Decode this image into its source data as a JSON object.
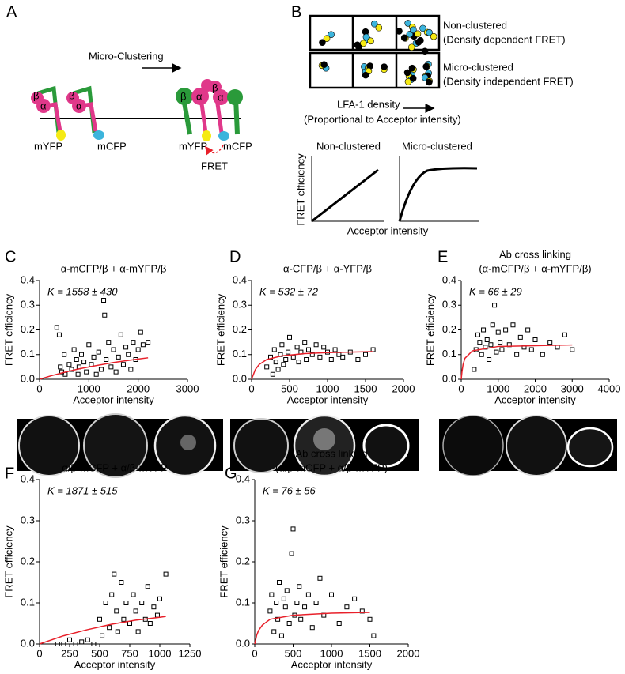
{
  "panels": [
    "A",
    "B",
    "C",
    "D",
    "E",
    "F",
    "G"
  ],
  "diagram_a": {
    "arrow_label": "Micro-Clustering",
    "alpha": "α",
    "beta": "β",
    "yfp": "mYFP",
    "cfp": "mCFP",
    "fret": "FRET"
  },
  "diagram_b": {
    "row1_title": "Non-clustered",
    "row1_note": "(Density dependent FRET)",
    "row2_title": "Micro-clustered",
    "row2_note": "(Density independent FRET)",
    "density_label": "LFA-1 density",
    "density_note": "(Proportional to Acceptor intensity)",
    "plot1_title": "Non-clustered",
    "plot2_title": "Micro-clustered",
    "ylabel": "FRET efficiency",
    "xlabel": "Acceptor intensity"
  },
  "chart_data": [
    {
      "type": "scatter",
      "title": "α-mCFP/β + α-mYFP/β",
      "annotation": "K = 1558 ± 430",
      "xlabel": "Acceptor intensity",
      "ylabel": "FRET efficiency",
      "xlim": [
        0,
        3000
      ],
      "ylim": [
        0,
        0.4
      ],
      "xticks": [
        0,
        1000,
        2000,
        3000
      ],
      "yticks": [
        {
          "value": 0,
          "label": "0.0"
        },
        0.1,
        0.2,
        0.3,
        0.4
      ],
      "series": [
        {
          "color": "#000000",
          "x": [
            350,
            400,
            420,
            450,
            500,
            520,
            600,
            650,
            700,
            750,
            780,
            800,
            850,
            900,
            950,
            1000,
            1050,
            1100,
            1150,
            1200,
            1250,
            1300,
            1320,
            1350,
            1400,
            1450,
            1500,
            1550,
            1600,
            1650,
            1700,
            1750,
            1800,
            1850,
            1900,
            1950,
            2000,
            2050,
            2100,
            2200
          ],
          "values": [
            0.21,
            0.18,
            0.05,
            0.03,
            0.1,
            0.02,
            0.06,
            0.04,
            0.12,
            0.08,
            0.02,
            0.05,
            0.1,
            0.07,
            0.03,
            0.14,
            0.06,
            0.09,
            0.02,
            0.11,
            0.04,
            0.32,
            0.26,
            0.08,
            0.15,
            0.05,
            0.12,
            0.03,
            0.09,
            0.18,
            0.06,
            0.13,
            0.1,
            0.04,
            0.15,
            0.08,
            0.12,
            0.19,
            0.14,
            0.15
          ]
        }
      ],
      "fit": {
        "color": "#e8202a",
        "x": [
          0,
          250,
          500,
          750,
          1000,
          1500,
          2000,
          2200
        ],
        "values": [
          0,
          0.015,
          0.028,
          0.04,
          0.05,
          0.068,
          0.082,
          0.087
        ]
      }
    },
    {
      "type": "scatter",
      "title": "α-CFP/β + α-YFP/β",
      "annotation": "K = 532 ± 72",
      "xlabel": "Acceptor intensity",
      "ylabel": "FRET efficiency",
      "xlim": [
        0,
        2000
      ],
      "ylim": [
        0,
        0.4
      ],
      "xticks": [
        0,
        500,
        1000,
        1500,
        2000
      ],
      "yticks": [
        {
          "value": 0,
          "label": "0.0"
        },
        0.1,
        0.2,
        0.3,
        0.4
      ],
      "series": [
        {
          "color": "#000000",
          "x": [
            200,
            250,
            280,
            300,
            320,
            350,
            380,
            400,
            420,
            450,
            480,
            500,
            550,
            600,
            620,
            650,
            700,
            720,
            750,
            800,
            850,
            900,
            950,
            1000,
            1050,
            1100,
            1150,
            1200,
            1300,
            1400,
            1500,
            1600
          ],
          "values": [
            0.05,
            0.09,
            0.02,
            0.12,
            0.07,
            0.04,
            0.1,
            0.14,
            0.06,
            0.08,
            0.11,
            0.17,
            0.09,
            0.13,
            0.07,
            0.11,
            0.15,
            0.08,
            0.12,
            0.1,
            0.14,
            0.09,
            0.13,
            0.11,
            0.08,
            0.12,
            0.1,
            0.09,
            0.11,
            0.08,
            0.1,
            0.12
          ]
        }
      ],
      "fit": {
        "color": "#e8202a",
        "x": [
          0,
          50,
          100,
          200,
          400,
          700,
          1000,
          1600
        ],
        "values": [
          0,
          0.04,
          0.06,
          0.08,
          0.095,
          0.104,
          0.108,
          0.112
        ]
      }
    },
    {
      "type": "scatter",
      "title": "Ab cross linking",
      "subtitle": "(α-mCFP/β + α-mYFP/β)",
      "annotation": "K = 66 ± 29",
      "xlabel": "Acceptor intensity",
      "ylabel": "FRET efficiency",
      "xlim": [
        0,
        4000
      ],
      "ylim": [
        0,
        0.4
      ],
      "xticks": [
        0,
        1000,
        2000,
        3000,
        4000
      ],
      "yticks": [
        {
          "value": 0,
          "label": "0.0"
        },
        0.1,
        0.2,
        0.3,
        0.4
      ],
      "series": [
        {
          "color": "#000000",
          "x": [
            350,
            400,
            450,
            500,
            550,
            600,
            650,
            700,
            750,
            800,
            850,
            900,
            950,
            1000,
            1050,
            1100,
            1200,
            1300,
            1400,
            1500,
            1600,
            1700,
            1800,
            1900,
            2000,
            2200,
            2400,
            2600,
            2800,
            3000
          ],
          "values": [
            0.04,
            0.12,
            0.18,
            0.15,
            0.1,
            0.2,
            0.13,
            0.16,
            0.08,
            0.14,
            0.22,
            0.3,
            0.11,
            0.19,
            0.15,
            0.12,
            0.2,
            0.14,
            0.22,
            0.1,
            0.17,
            0.13,
            0.2,
            0.12,
            0.16,
            0.1,
            0.15,
            0.13,
            0.18,
            0.12
          ]
        }
      ],
      "fit": {
        "color": "#e8202a",
        "x": [
          0,
          20,
          50,
          100,
          300,
          1000,
          3000
        ],
        "values": [
          0,
          0.03,
          0.06,
          0.085,
          0.115,
          0.133,
          0.139
        ]
      }
    },
    {
      "type": "scatter",
      "title": "α/β-mCFP + α/β-mYFP",
      "annotation": "K = 1871 ± 515",
      "xlabel": "Acceptor intensity",
      "ylabel": "FRET efficiency",
      "xlim": [
        0,
        1250
      ],
      "ylim": [
        0,
        0.4
      ],
      "xticks": [
        0,
        250,
        500,
        750,
        1000,
        1250
      ],
      "yticks": [
        {
          "value": 0,
          "label": "0.0"
        },
        0.1,
        0.2,
        0.3,
        0.4
      ],
      "series": [
        {
          "color": "#000000",
          "x": [
            150,
            200,
            250,
            300,
            350,
            400,
            450,
            500,
            520,
            550,
            580,
            600,
            620,
            640,
            650,
            680,
            700,
            720,
            750,
            780,
            800,
            820,
            850,
            880,
            900,
            920,
            950,
            980,
            1000,
            1050
          ],
          "values": [
            0,
            0,
            0.01,
            0,
            0.005,
            0.01,
            0,
            0.06,
            0.02,
            0.1,
            0.04,
            0.12,
            0.17,
            0.08,
            0.03,
            0.15,
            0.06,
            0.1,
            0.05,
            0.12,
            0.08,
            0.03,
            0.1,
            0.06,
            0.14,
            0.05,
            0.09,
            0.07,
            0.11,
            0.17
          ]
        }
      ],
      "fit": {
        "color": "#e8202a",
        "x": [
          0,
          200,
          400,
          600,
          800,
          1000,
          1050
        ],
        "values": [
          0,
          0.02,
          0.035,
          0.048,
          0.058,
          0.065,
          0.067
        ]
      }
    },
    {
      "type": "scatter",
      "title": "Ab cross linking",
      "subtitle": "(α/β-mCFP + α/β-mYFP)",
      "annotation": "K = 76 ± 56",
      "xlabel": "Acceptor intensity",
      "ylabel": "FRET efficiency",
      "xlim": [
        0,
        2000
      ],
      "ylim": [
        0,
        0.4
      ],
      "xticks": [
        0,
        500,
        1000,
        1500,
        2000
      ],
      "yticks": [
        {
          "value": 0,
          "label": "0.0"
        },
        0.1,
        0.2,
        0.3,
        0.4
      ],
      "series": [
        {
          "color": "#000000",
          "x": [
            200,
            220,
            250,
            280,
            300,
            320,
            350,
            380,
            400,
            420,
            450,
            480,
            500,
            520,
            550,
            580,
            600,
            650,
            700,
            750,
            800,
            850,
            900,
            1000,
            1100,
            1200,
            1300,
            1400,
            1500,
            1550
          ],
          "values": [
            0.08,
            0.12,
            0.03,
            0.1,
            0.06,
            0.15,
            0.02,
            0.11,
            0.09,
            0.13,
            0.05,
            0.22,
            0.28,
            0.07,
            0.1,
            0.14,
            0.06,
            0.09,
            0.12,
            0.04,
            0.1,
            0.16,
            0.07,
            0.12,
            0.05,
            0.09,
            0.11,
            0.08,
            0.06,
            0.02
          ]
        }
      ],
      "fit": {
        "color": "#e8202a",
        "x": [
          0,
          25,
          50,
          100,
          200,
          500,
          1000,
          1500
        ],
        "values": [
          0,
          0.021,
          0.033,
          0.046,
          0.06,
          0.07,
          0.075,
          0.077
        ]
      }
    }
  ]
}
